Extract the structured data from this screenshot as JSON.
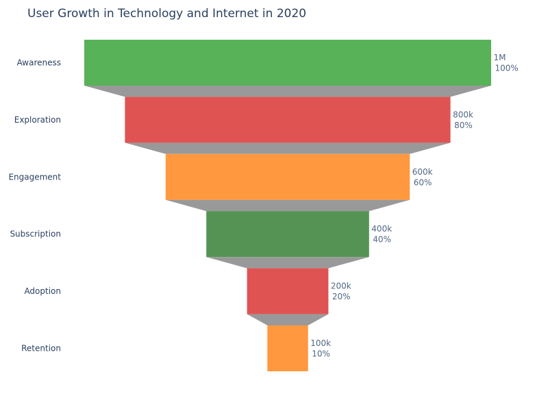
{
  "chart_data": {
    "type": "funnel",
    "title": "User Growth in Technology and Internet in 2020",
    "categories": [
      "Awareness",
      "Exploration",
      "Engagement",
      "Subscription",
      "Adoption",
      "Retention"
    ],
    "values": [
      1000000,
      800000,
      600000,
      400000,
      200000,
      100000
    ],
    "value_labels": [
      "1M",
      "800k",
      "600k",
      "400k",
      "200k",
      "100k"
    ],
    "percent_labels": [
      "100%",
      "80%",
      "60%",
      "40%",
      "20%",
      "10%"
    ],
    "colors": [
      "#58b258",
      "#e05353",
      "#ff983e",
      "#559355",
      "#e05353",
      "#ff983e"
    ],
    "connector_color": "#999999",
    "xlabel": "",
    "ylabel": ""
  }
}
